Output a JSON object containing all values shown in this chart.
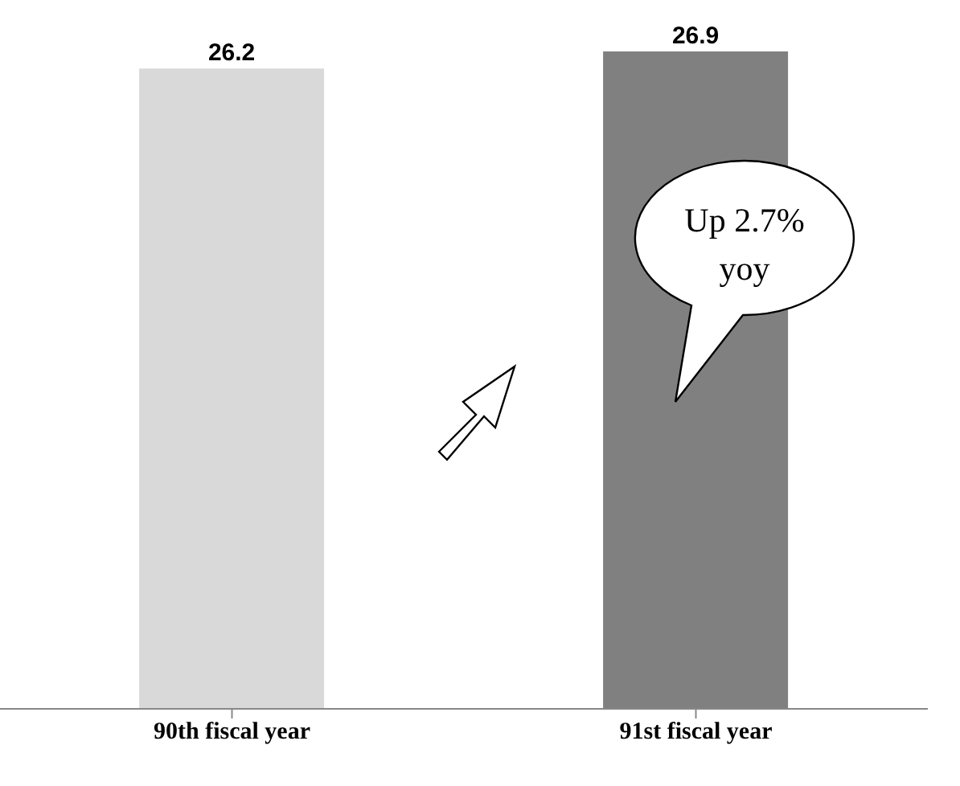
{
  "chart_data": {
    "type": "bar",
    "categories": [
      "90th fiscal year",
      "91st fiscal year"
    ],
    "values": [
      26.2,
      26.9
    ],
    "colors": [
      "#d9d9d9",
      "#808080"
    ],
    "data_labels": true,
    "annotations": [
      "Up 2.7% yoy"
    ]
  }
}
